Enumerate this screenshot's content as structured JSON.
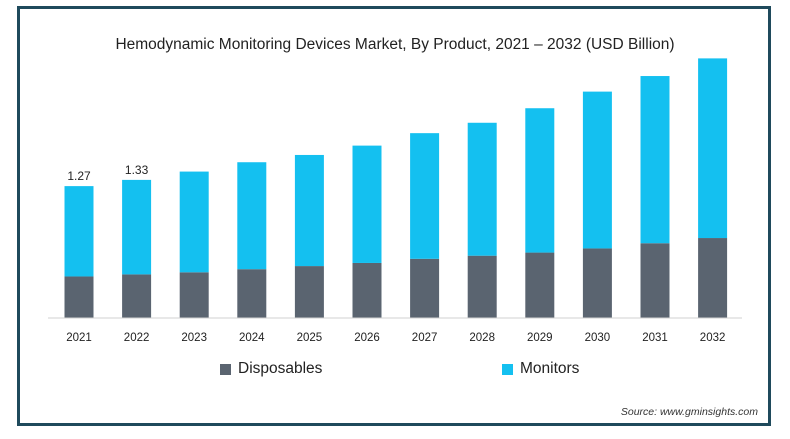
{
  "chart_data": {
    "type": "bar",
    "stacked": true,
    "title": "Hemodynamic Monitoring Devices Market, By Product, 2021 – 2032 (USD Billion)",
    "xlabel": "",
    "ylabel": "",
    "categories": [
      "2021",
      "2022",
      "2023",
      "2024",
      "2025",
      "2026",
      "2027",
      "2028",
      "2029",
      "2030",
      "2031",
      "2032"
    ],
    "series": [
      {
        "name": "Disposables",
        "color": "#5a6470",
        "values": [
          0.4,
          0.42,
          0.44,
          0.47,
          0.5,
          0.53,
          0.57,
          0.6,
          0.63,
          0.67,
          0.72,
          0.77
        ]
      },
      {
        "name": "Monitors",
        "color": "#14c0f0",
        "values": [
          0.87,
          0.91,
          0.97,
          1.03,
          1.07,
          1.13,
          1.21,
          1.28,
          1.39,
          1.51,
          1.61,
          1.73
        ]
      }
    ],
    "data_labels": [
      {
        "category": "2021",
        "text": "1.27"
      },
      {
        "category": "2022",
        "text": "1.33"
      }
    ],
    "ylim": [
      0,
      2.6
    ],
    "grid": false,
    "legend_position": "bottom-center"
  },
  "source_text": "Source: www.gminsights.com"
}
